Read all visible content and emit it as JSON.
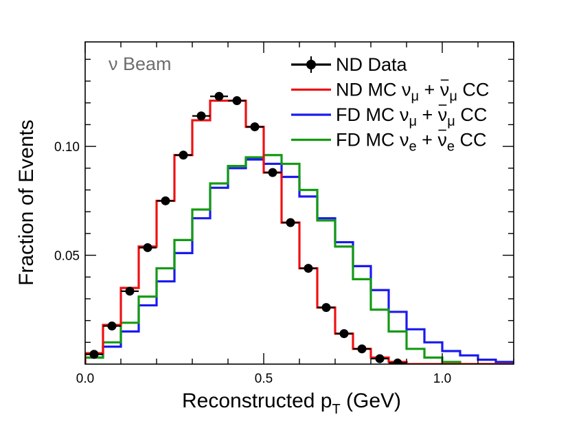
{
  "chart_data": {
    "type": "line",
    "title": "",
    "annotation": "ν Beam",
    "xlabel": "Reconstructed p",
    "xlabel_sub": "T",
    "xlabel_unit": " (GeV)",
    "ylabel": "Fraction of Events",
    "xlim": [
      0,
      1.2
    ],
    "ylim": [
      0,
      0.148
    ],
    "x_ticks": [
      {
        "value": 0.0,
        "label": "0.0"
      },
      {
        "value": 0.5,
        "label": "0.5"
      },
      {
        "value": 1.0,
        "label": "1.0"
      }
    ],
    "y_ticks": [
      {
        "value": 0.05,
        "label": "0.05"
      },
      {
        "value": 0.1,
        "label": "0.10"
      }
    ],
    "bin_edges": [
      0.0,
      0.05,
      0.1,
      0.15,
      0.2,
      0.25,
      0.3,
      0.35,
      0.4,
      0.45,
      0.5,
      0.55,
      0.6,
      0.65,
      0.7,
      0.75,
      0.8,
      0.85,
      0.9,
      0.95,
      1.0,
      1.05,
      1.1,
      1.15,
      1.2
    ],
    "series": [
      {
        "name": "ND MC",
        "legend_main": "ND MC ν",
        "legend_sub1": "μ",
        "legend_mid": " + ν",
        "legend_sub2": "μ",
        "legend_end": " CC",
        "color": "#ee1111",
        "style": "step",
        "values": [
          0.005,
          0.018,
          0.035,
          0.054,
          0.075,
          0.096,
          0.112,
          0.121,
          0.121,
          0.109,
          0.088,
          0.065,
          0.044,
          0.026,
          0.014,
          0.007,
          0.003,
          0.001,
          0.0,
          0.0,
          0.0,
          0.0,
          0.0,
          0.0
        ]
      },
      {
        "name": "FD MC numu",
        "legend_main": "FD MC ν",
        "legend_sub1": "μ",
        "legend_mid": " + ν",
        "legend_sub2": "μ",
        "legend_end": " CC",
        "color": "#1a1aee",
        "style": "step",
        "values": [
          0.003,
          0.008,
          0.015,
          0.027,
          0.038,
          0.051,
          0.067,
          0.081,
          0.09,
          0.094,
          0.092,
          0.086,
          0.077,
          0.067,
          0.056,
          0.045,
          0.034,
          0.024,
          0.016,
          0.01,
          0.006,
          0.004,
          0.002,
          0.001
        ]
      },
      {
        "name": "FD MC nue",
        "legend_main": "FD MC ν",
        "legend_sub1": "e",
        "legend_mid": " + ν",
        "legend_sub2": "e",
        "legend_end": " CC",
        "color": "#149a14",
        "style": "step",
        "values": [
          0.003,
          0.01,
          0.019,
          0.031,
          0.044,
          0.057,
          0.071,
          0.083,
          0.091,
          0.095,
          0.096,
          0.092,
          0.08,
          0.066,
          0.054,
          0.039,
          0.025,
          0.015,
          0.007,
          0.003,
          0.001,
          0.0,
          0.0,
          0.0
        ]
      },
      {
        "name": "ND Data",
        "legend_main": "ND Data",
        "color": "#000000",
        "style": "points",
        "x": [
          0.025,
          0.075,
          0.125,
          0.175,
          0.225,
          0.275,
          0.325,
          0.375,
          0.425,
          0.475,
          0.525,
          0.575,
          0.625,
          0.675,
          0.725,
          0.775,
          0.825,
          0.875
        ],
        "values": [
          0.0045,
          0.0175,
          0.0335,
          0.0535,
          0.075,
          0.096,
          0.114,
          0.123,
          0.121,
          0.109,
          0.088,
          0.065,
          0.044,
          0.026,
          0.014,
          0.007,
          0.0025,
          0.0005
        ]
      }
    ],
    "legend_position": "top-right"
  }
}
